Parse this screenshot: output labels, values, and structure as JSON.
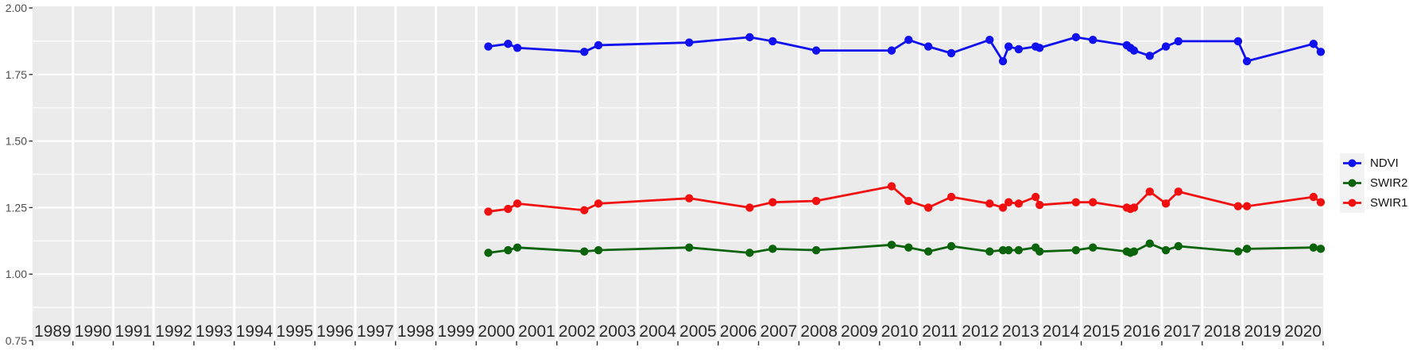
{
  "chart_data": {
    "type": "line",
    "title": "",
    "xlabel": "",
    "ylabel": "",
    "x": [
      2000.3,
      2000.79,
      2001.02,
      2002.68,
      2003.03,
      2005.28,
      2006.78,
      2007.35,
      2008.43,
      2010.3,
      2010.72,
      2011.21,
      2011.78,
      2012.73,
      2013.06,
      2013.2,
      2013.45,
      2013.87,
      2013.97,
      2014.87,
      2015.29,
      2016.13,
      2016.22,
      2016.31,
      2016.7,
      2017.1,
      2017.41,
      2018.89,
      2019.11,
      2020.76,
      2020.94
    ],
    "series": [
      {
        "name": "NDVI",
        "color": "#1111EE",
        "values": [
          1.855,
          1.865,
          1.85,
          1.835,
          1.86,
          1.87,
          1.89,
          1.875,
          1.84,
          1.84,
          1.88,
          1.855,
          1.83,
          1.88,
          1.8,
          1.855,
          1.845,
          1.855,
          1.85,
          1.89,
          1.88,
          1.86,
          1.85,
          1.84,
          1.82,
          1.855,
          1.875,
          1.875,
          1.8,
          1.865,
          1.835
        ]
      },
      {
        "name": "SWIR2",
        "color": "#0B640B",
        "values": [
          1.08,
          1.09,
          1.1,
          1.085,
          1.09,
          1.1,
          1.08,
          1.095,
          1.09,
          1.11,
          1.1,
          1.085,
          1.105,
          1.085,
          1.09,
          1.09,
          1.09,
          1.1,
          1.085,
          1.09,
          1.1,
          1.085,
          1.08,
          1.085,
          1.115,
          1.09,
          1.105,
          1.085,
          1.095,
          1.1,
          1.095
        ]
      },
      {
        "name": "SWIR1",
        "color": "#F11010",
        "values": [
          1.235,
          1.245,
          1.265,
          1.24,
          1.265,
          1.285,
          1.25,
          1.27,
          1.275,
          1.33,
          1.275,
          1.25,
          1.29,
          1.265,
          1.25,
          1.27,
          1.265,
          1.29,
          1.26,
          1.27,
          1.27,
          1.25,
          1.245,
          1.25,
          1.31,
          1.265,
          1.31,
          1.255,
          1.255,
          1.29,
          1.27
        ]
      }
    ],
    "x_axis": {
      "range": [
        1989,
        2021
      ],
      "year_labels": [
        "1989",
        "1990",
        "1991",
        "1992",
        "1993",
        "1994",
        "1995",
        "1996",
        "1997",
        "1998",
        "1999",
        "2000",
        "2001",
        "2002",
        "2003",
        "2004",
        "2005",
        "2006",
        "2007",
        "2008",
        "2009",
        "2010",
        "2011",
        "2012",
        "2013",
        "2014",
        "2015",
        "2016",
        "2017",
        "2018",
        "2019",
        "2020"
      ]
    },
    "y_axis": {
      "range": [
        0.75,
        2.0
      ],
      "tick_labels": [
        "0.75",
        "1.00",
        "1.25",
        "1.50",
        "1.75",
        "2.00"
      ],
      "tick_values": [
        0.75,
        1.0,
        1.25,
        1.5,
        1.75,
        2.0
      ],
      "minor_values": [
        0.875,
        1.125,
        1.375,
        1.625,
        1.875
      ],
      "grid": true
    },
    "legend": {
      "position": "right",
      "entries": [
        "NDVI",
        "SWIR2",
        "SWIR1"
      ]
    },
    "style": {
      "panel_bg": "#EBEBEB",
      "grid_color": "#FFFFFF",
      "legend_key_bg": "#F2F2F2",
      "tick_mark_color": "#333333",
      "y_label_color": "#4D4D4D",
      "x_label_color": "#2B2B2B"
    }
  }
}
